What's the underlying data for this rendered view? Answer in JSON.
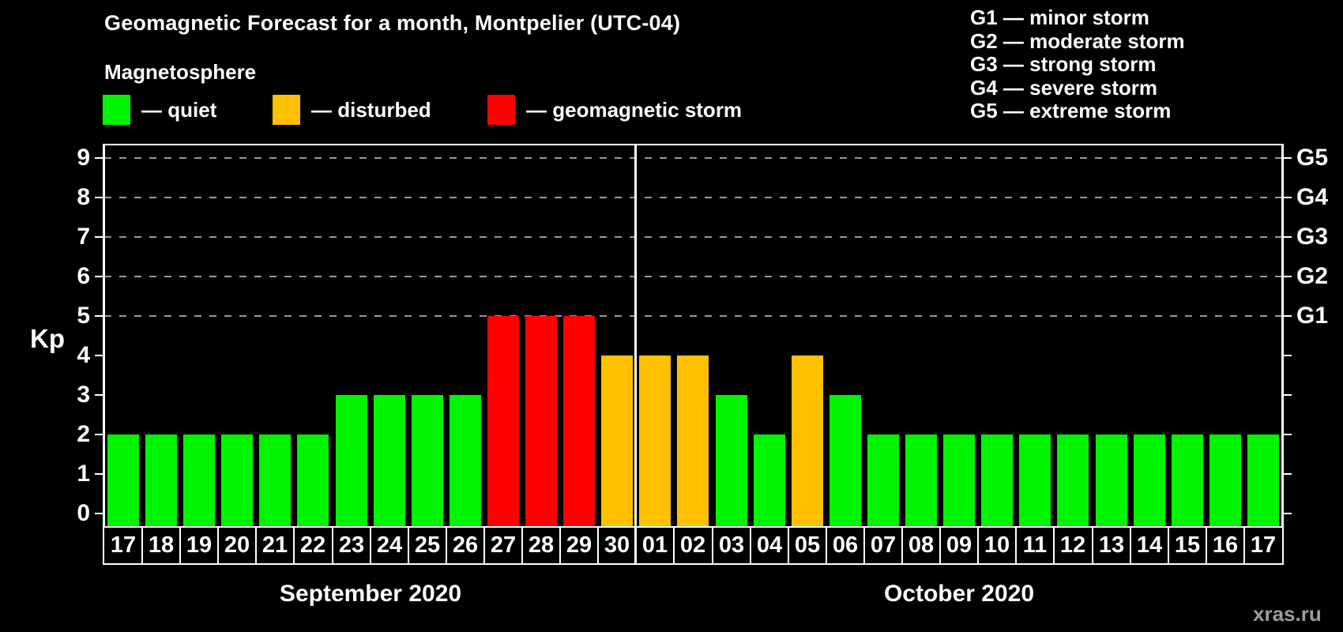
{
  "title": "Geomagnetic Forecast for a month, Montpelier (UTC-04)",
  "subtitle": "Magnetosphere",
  "legend": {
    "items": [
      {
        "status": "quiet",
        "color": "#00f400",
        "label": "— quiet"
      },
      {
        "status": "disturbed",
        "color": "#ffc000",
        "label": "— disturbed"
      },
      {
        "status": "storm",
        "color": "#ff0000",
        "label": "— geomagnetic storm"
      }
    ]
  },
  "g_legend": [
    "G1 — minor storm",
    "G2 — moderate storm",
    "G3 — strong storm",
    "G4 — severe storm",
    "G5 — extreme storm"
  ],
  "watermark": "xras.ru",
  "chart_data": {
    "type": "bar",
    "title": "Geomagnetic Forecast for a month, Montpelier (UTC-04)",
    "ylabel": "Kp",
    "ylim": [
      0,
      9
    ],
    "yticks": [
      0,
      1,
      2,
      3,
      4,
      5,
      6,
      7,
      8,
      9
    ],
    "gridlines_at": [
      5,
      6,
      7,
      8,
      9
    ],
    "grid": "dashed-gray",
    "legend_position": "top",
    "right_axis_labels": [
      {
        "value": 5,
        "label": "G1"
      },
      {
        "value": 6,
        "label": "G2"
      },
      {
        "value": 7,
        "label": "G3"
      },
      {
        "value": 8,
        "label": "G4"
      },
      {
        "value": 9,
        "label": "G5"
      }
    ],
    "colors": {
      "quiet": "#00f400",
      "disturbed": "#ffc000",
      "storm": "#ff0000"
    },
    "months": [
      {
        "label": "September 2020",
        "start_index": 0,
        "days": 14
      },
      {
        "label": "October 2020",
        "start_index": 14,
        "days": 17
      }
    ],
    "bars": [
      {
        "day": "17",
        "value": 2,
        "status": "quiet"
      },
      {
        "day": "18",
        "value": 2,
        "status": "quiet"
      },
      {
        "day": "19",
        "value": 2,
        "status": "quiet"
      },
      {
        "day": "20",
        "value": 2,
        "status": "quiet"
      },
      {
        "day": "21",
        "value": 2,
        "status": "quiet"
      },
      {
        "day": "22",
        "value": 2,
        "status": "quiet"
      },
      {
        "day": "23",
        "value": 3,
        "status": "quiet"
      },
      {
        "day": "24",
        "value": 3,
        "status": "quiet"
      },
      {
        "day": "25",
        "value": 3,
        "status": "quiet"
      },
      {
        "day": "26",
        "value": 3,
        "status": "quiet"
      },
      {
        "day": "27",
        "value": 5,
        "status": "storm"
      },
      {
        "day": "28",
        "value": 5,
        "status": "storm"
      },
      {
        "day": "29",
        "value": 5,
        "status": "storm"
      },
      {
        "day": "30",
        "value": 4,
        "status": "disturbed"
      },
      {
        "day": "01",
        "value": 4,
        "status": "disturbed"
      },
      {
        "day": "02",
        "value": 4,
        "status": "disturbed"
      },
      {
        "day": "03",
        "value": 3,
        "status": "quiet"
      },
      {
        "day": "04",
        "value": 2,
        "status": "quiet"
      },
      {
        "day": "05",
        "value": 4,
        "status": "disturbed"
      },
      {
        "day": "06",
        "value": 3,
        "status": "quiet"
      },
      {
        "day": "07",
        "value": 2,
        "status": "quiet"
      },
      {
        "day": "08",
        "value": 2,
        "status": "quiet"
      },
      {
        "day": "09",
        "value": 2,
        "status": "quiet"
      },
      {
        "day": "10",
        "value": 2,
        "status": "quiet"
      },
      {
        "day": "11",
        "value": 2,
        "status": "quiet"
      },
      {
        "day": "12",
        "value": 2,
        "status": "quiet"
      },
      {
        "day": "13",
        "value": 2,
        "status": "quiet"
      },
      {
        "day": "14",
        "value": 2,
        "status": "quiet"
      },
      {
        "day": "15",
        "value": 2,
        "status": "quiet"
      },
      {
        "day": "16",
        "value": 2,
        "status": "quiet"
      },
      {
        "day": "17",
        "value": 2,
        "status": "quiet"
      }
    ]
  }
}
